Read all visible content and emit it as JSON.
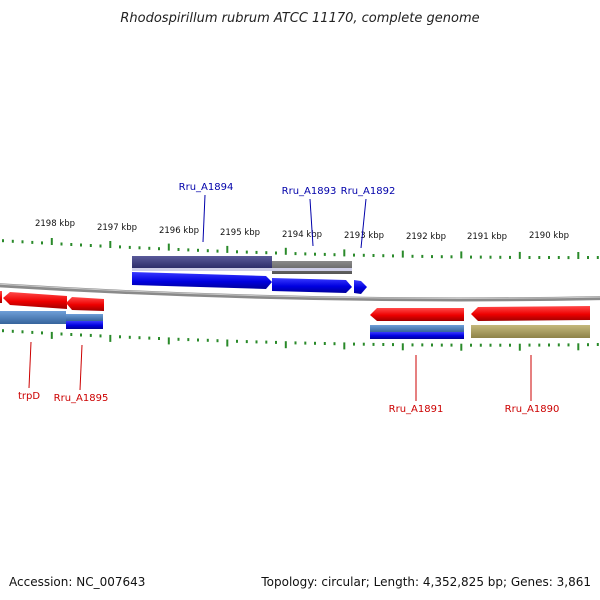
{
  "title": "Rhodospirillum rubrum ATCC 11170, complete genome",
  "footer": {
    "accession": "Accession: NC_007643",
    "topology": "Topology: circular; Length: 4,352,825 bp; Genes: 3,861"
  },
  "ticks": [
    "2198 kbp",
    "2197 kbp",
    "2196 kbp",
    "2195 kbp",
    "2194 kbp",
    "2193 kbp",
    "2192 kbp",
    "2191 kbp",
    "2190 kbp"
  ],
  "colors": {
    "forward": "#0000ee",
    "reverse": "#ee0000",
    "backbone": "#888888",
    "tick": "#2a8a2a",
    "label_forward": "#0000aa",
    "label_reverse": "#cc0000",
    "cds_gray": "#6e6e6e",
    "cds_navy": "#3d3d7a",
    "cds_steel": "#4f7fb8",
    "cds_olive": "#a89c60"
  },
  "genes": {
    "forward": [
      "Rru_A1894",
      "Rru_A1893",
      "Rru_A1892"
    ],
    "reverse": [
      "trpD",
      "Rru_A1895",
      "Rru_A1891",
      "Rru_A1890"
    ]
  }
}
